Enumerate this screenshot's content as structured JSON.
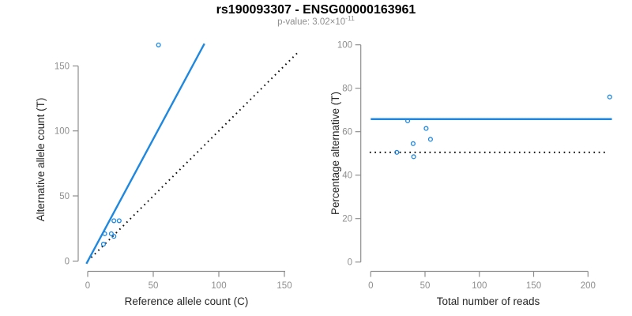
{
  "header": {
    "title": "rs190093307 - ENSG00000163961",
    "subtitle_prefix": "p-value: 3.02×10",
    "subtitle_exponent": "-11"
  },
  "colors": {
    "accent_blue": "#1E88E0",
    "axis_gray": "#8E8E8E",
    "label_dark": "#262626",
    "dotted_black": "#111111"
  },
  "chart_data": [
    {
      "type": "scatter",
      "name": "alternative-vs-reference-allele-count",
      "xlabel": "Reference allele count (C)",
      "ylabel": "Alternative allele count (T)",
      "xticks": [
        0,
        50,
        100,
        150
      ],
      "yticks": [
        0,
        50,
        100,
        150
      ],
      "xlim": [
        -7,
        173
      ],
      "ylim": [
        -7,
        173
      ],
      "grid": false,
      "legend": "none",
      "marker": "open-circle",
      "points": [
        [
          12,
          13
        ],
        [
          13,
          21
        ],
        [
          18,
          21
        ],
        [
          20,
          19
        ],
        [
          20,
          31
        ],
        [
          24,
          31
        ],
        [
          54,
          166
        ]
      ],
      "fit_line": {
        "style": "solid-blue",
        "x": [
          -1,
          89
        ],
        "y": [
          -2,
          167
        ]
      },
      "identity_line": {
        "style": "dotted-black",
        "x": [
          0,
          161
        ],
        "y": [
          0,
          161
        ]
      }
    },
    {
      "type": "scatter",
      "name": "percentage-alternative-vs-total-reads",
      "xlabel": "Total number of reads",
      "ylabel": "Percentage alternative (T)",
      "xticks": [
        0,
        50,
        100,
        150,
        200
      ],
      "yticks": [
        0,
        20,
        40,
        60,
        80,
        100
      ],
      "xlim": [
        -9,
        229
      ],
      "ylim": [
        0,
        100
      ],
      "grid": false,
      "legend": "none",
      "marker": "open-circle",
      "points": [
        [
          24,
          50.5
        ],
        [
          34,
          65
        ],
        [
          39,
          54.5
        ],
        [
          39.5,
          48.5
        ],
        [
          51,
          61.5
        ],
        [
          55,
          56.5
        ],
        [
          220,
          76
        ]
      ],
      "fit_line": {
        "style": "solid-blue",
        "y": 65.8,
        "x": [
          0,
          222
        ]
      },
      "null_line": {
        "style": "dotted-black",
        "y": 50.5,
        "x": [
          -1,
          217
        ]
      }
    }
  ]
}
